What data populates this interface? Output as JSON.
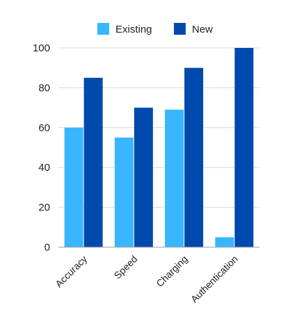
{
  "chart_data": {
    "type": "bar",
    "categories": [
      "Accuracy",
      "Speed",
      "Charging",
      "Authentication"
    ],
    "series": [
      {
        "name": "Existing",
        "values": [
          60,
          55,
          69,
          5
        ],
        "color": "#38b6ff"
      },
      {
        "name": "New",
        "values": [
          85,
          70,
          90,
          100
        ],
        "color": "#004aad"
      }
    ],
    "title": "",
    "xlabel": "",
    "ylabel": "",
    "ylim": [
      0,
      100
    ],
    "yticks": [
      0,
      20,
      40,
      60,
      80,
      100
    ],
    "grid": true,
    "legend_position": "top"
  },
  "colors": {
    "grid": "#d9d9d9",
    "axis": "#9e9e9e",
    "text": "#222222",
    "background": "#ffffff"
  }
}
